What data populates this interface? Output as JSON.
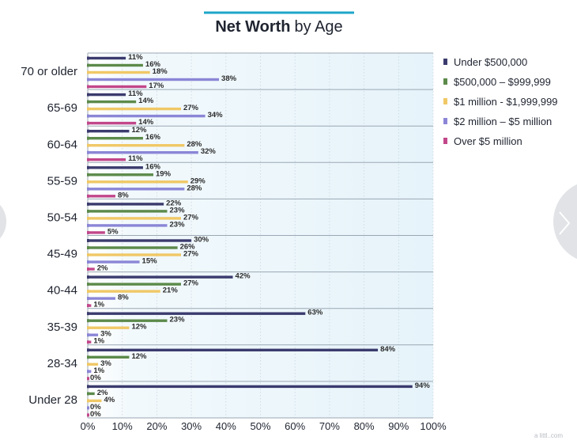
{
  "chart_data": {
    "type": "bar",
    "orientation": "horizontal",
    "title": "Net Worth by Age",
    "title_bold": "Net Worth",
    "title_rest": "by Age",
    "categories": [
      "70 or older",
      "65-69",
      "60-64",
      "55-59",
      "50-54",
      "45-49",
      "40-44",
      "35-39",
      "28-34",
      "Under 28"
    ],
    "series": [
      {
        "name": "Under $500,000",
        "color": "#3b3b6e",
        "values": [
          11,
          11,
          12,
          16,
          22,
          30,
          42,
          63,
          84,
          94
        ]
      },
      {
        "name": "$500,000 – $999,999",
        "color": "#5c8a4a",
        "values": [
          16,
          14,
          16,
          19,
          23,
          26,
          27,
          23,
          12,
          2
        ]
      },
      {
        "name": "$1 million - $1,999,999",
        "color": "#f0c866",
        "values": [
          18,
          27,
          28,
          29,
          27,
          27,
          21,
          12,
          3,
          4
        ]
      },
      {
        "name": "$2 million – $5 million",
        "color": "#8b86d6",
        "values": [
          38,
          34,
          32,
          28,
          23,
          15,
          8,
          3,
          1,
          0
        ]
      },
      {
        "name": "Over $5 million",
        "color": "#c2478a",
        "values": [
          17,
          14,
          11,
          8,
          5,
          2,
          1,
          1,
          0,
          0
        ]
      }
    ],
    "value_suffix": "%",
    "xlim": [
      0,
      100
    ],
    "xticks": [
      "0%",
      "10%",
      "20%",
      "30%",
      "40%",
      "50%",
      "60%",
      "70%",
      "80%",
      "90%",
      "100%"
    ],
    "legend_position": "right",
    "grid": true,
    "colors": {
      "plot_background": "#e9f5fb",
      "title_underline": "#1ea7c9",
      "category_separator": "#9aa7b3"
    }
  },
  "watermark": "a littl..com"
}
